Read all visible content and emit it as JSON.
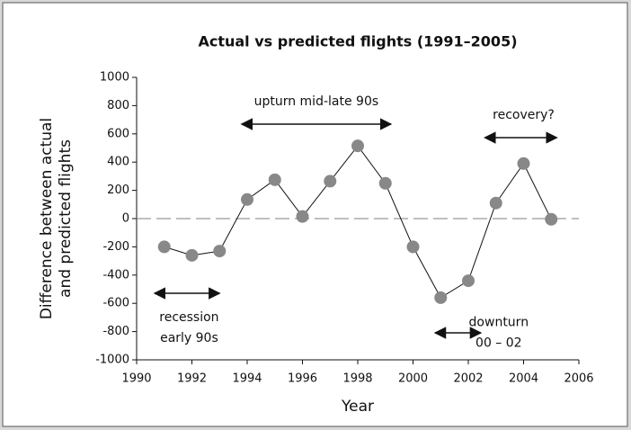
{
  "chart_data": {
    "type": "line",
    "title": "Actual vs predicted flights (1991–2005)",
    "x_label": "Year",
    "y_label": [
      "Difference between actual",
      "and predicted flights"
    ],
    "x": [
      1991,
      1992,
      1993,
      1994,
      1995,
      1996,
      1997,
      1998,
      1999,
      2000,
      2001,
      2002,
      2003,
      2004,
      2005
    ],
    "series": [
      {
        "name": "Difference",
        "color": "#888888",
        "values": [
          -200,
          -260,
          -230,
          135,
          275,
          15,
          265,
          515,
          250,
          -200,
          -560,
          -440,
          110,
          390,
          -5
        ]
      }
    ],
    "xlim": [
      1990,
      2006
    ],
    "xticks": [
      1990,
      1992,
      1994,
      1996,
      1998,
      2000,
      2002,
      2004,
      2006
    ],
    "ylim": [
      -1000,
      1000
    ],
    "yticks": [
      -1000,
      -800,
      -600,
      -400,
      -200,
      0,
      200,
      400,
      600,
      800,
      1000
    ],
    "zero_line": true,
    "annotations": [
      {
        "lines": [
          "upturn mid-late 90s"
        ]
      },
      {
        "lines": [
          "recovery?"
        ]
      },
      {
        "lines": [
          "recession",
          "early 90s"
        ]
      },
      {
        "lines": [
          "downturn",
          "00 – 02"
        ]
      }
    ]
  }
}
